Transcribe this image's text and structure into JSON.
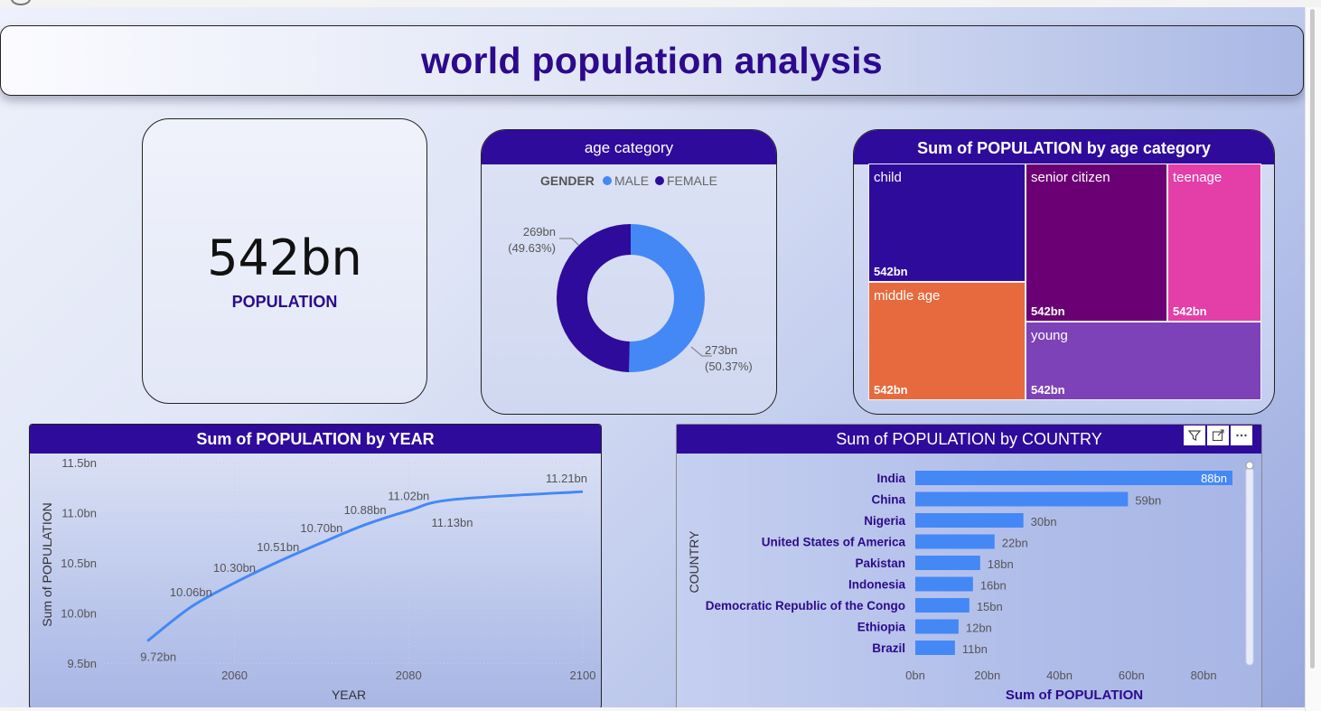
{
  "header": {
    "title": "world population analysis"
  },
  "kpi": {
    "value": "542bn",
    "label": "POPULATION"
  },
  "colors": {
    "primary": "#2f0b9c",
    "male": "#4488f6",
    "female": "#2f0b9c",
    "child": "#2f0b9c",
    "senior": "#6b0074",
    "teenage": "#e43ea8",
    "middle": "#e66a3e",
    "young": "#7e42b8",
    "line": "#4488f6",
    "bar": "#4488f6"
  },
  "chart_data": [
    {
      "type": "pie",
      "title": "age category",
      "legend": {
        "title": "GENDER",
        "entries": [
          "MALE",
          "FEMALE"
        ],
        "placement": "top"
      },
      "slices": [
        {
          "name": "MALE",
          "value": 273,
          "label": "273bn",
          "pct": "(50.37%)"
        },
        {
          "name": "FEMALE",
          "value": 269,
          "label": "269bn",
          "pct": "(49.63%)"
        }
      ]
    },
    {
      "type": "treemap",
      "title": "Sum of POPULATION by age category",
      "items": [
        {
          "name": "child",
          "value": 542,
          "label": "542bn"
        },
        {
          "name": "senior citizen",
          "value": 542,
          "label": "542bn"
        },
        {
          "name": "teenage",
          "value": 542,
          "label": "542bn"
        },
        {
          "name": "middle age",
          "value": 542,
          "label": "542bn"
        },
        {
          "name": "young",
          "value": 542,
          "label": "542bn"
        }
      ]
    },
    {
      "type": "line",
      "title": "Sum of POPULATION by YEAR",
      "xlabel": "YEAR",
      "ylabel": "Sum of POPULATION",
      "xlim": [
        2045,
        2100
      ],
      "xticks": [
        2060,
        2080,
        2100
      ],
      "ylim": [
        9.5,
        11.5
      ],
      "yticks": [
        {
          "value": 9.5,
          "label": "9.5bn"
        },
        {
          "value": 10.0,
          "label": "10.0bn"
        },
        {
          "value": 10.5,
          "label": "10.5bn"
        },
        {
          "value": 11.0,
          "label": "11.0bn"
        },
        {
          "value": 11.5,
          "label": "11.5bn"
        }
      ],
      "points": [
        {
          "x": 2050,
          "y": 9.72,
          "label": "9.72bn"
        },
        {
          "x": 2055,
          "y": 10.06,
          "label": "10.06bn"
        },
        {
          "x": 2060,
          "y": 10.3,
          "label": "10.30bn"
        },
        {
          "x": 2065,
          "y": 10.51,
          "label": "10.51bn"
        },
        {
          "x": 2070,
          "y": 10.7,
          "label": "10.70bn"
        },
        {
          "x": 2075,
          "y": 10.88,
          "label": "10.88bn"
        },
        {
          "x": 2080,
          "y": 11.02,
          "label": "11.02bn"
        },
        {
          "x": 2085,
          "y": 11.13,
          "label": "11.13bn"
        },
        {
          "x": 2100,
          "y": 11.21,
          "label": "11.21bn"
        }
      ]
    },
    {
      "type": "bar",
      "orientation": "horizontal",
      "title": "Sum of POPULATION by COUNTRY",
      "xlabel": "Sum of POPULATION",
      "ylabel": "COUNTRY",
      "xlim": [
        0,
        88
      ],
      "xticks": [
        {
          "value": 0,
          "label": "0bn"
        },
        {
          "value": 20,
          "label": "20bn"
        },
        {
          "value": 40,
          "label": "40bn"
        },
        {
          "value": 60,
          "label": "60bn"
        },
        {
          "value": 80,
          "label": "80bn"
        }
      ],
      "categories": [
        "India",
        "China",
        "Nigeria",
        "United States of America",
        "Pakistan",
        "Indonesia",
        "Democratic Republic of the Congo",
        "Ethiopia",
        "Brazil"
      ],
      "values": [
        88,
        59,
        30,
        22,
        18,
        16,
        15,
        12,
        11
      ],
      "labels": [
        "88bn",
        "59bn",
        "30bn",
        "22bn",
        "18bn",
        "16bn",
        "15bn",
        "12bn",
        "11bn"
      ]
    }
  ]
}
